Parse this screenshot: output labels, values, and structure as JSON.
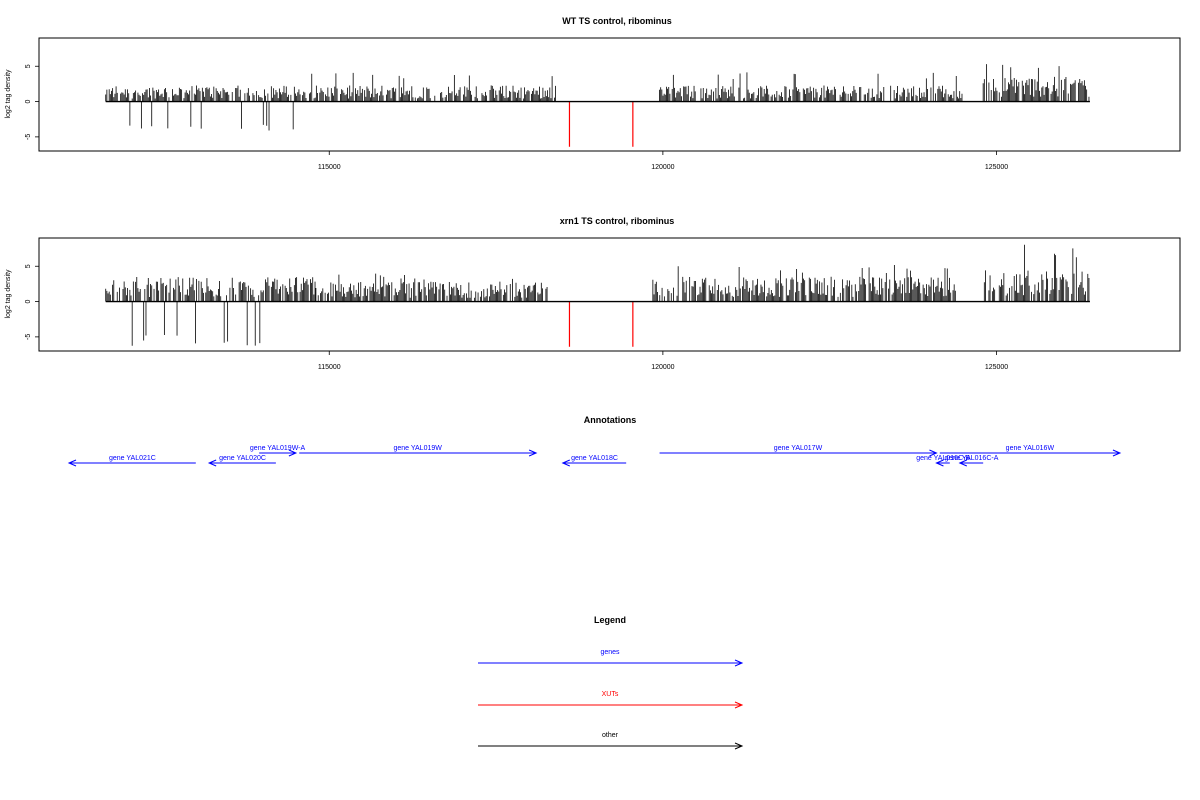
{
  "chart_data": [
    {
      "type": "bar",
      "title": "WT TS control, ribominus",
      "xlabel": "",
      "ylabel": "log2 tag density",
      "xlim": [
        110650,
        127750
      ],
      "ylim": [
        -7,
        9
      ],
      "xticks": [
        115000,
        120000,
        125000
      ],
      "yticks": [
        -5,
        0,
        5
      ],
      "x_tick_labels": [
        "115000",
        "120000",
        "125000"
      ],
      "y_tick_labels": [
        "-5",
        "0",
        "5"
      ],
      "grid": false,
      "segments": [
        {
          "from": 111650,
          "to": 114600,
          "strand": "minus",
          "mean": -1.7,
          "max": 4.2,
          "color": "#000000"
        },
        {
          "from": 114600,
          "to": 118400,
          "strand": "plus",
          "mean": 1.7,
          "max": 4.1,
          "color": "#000000"
        },
        {
          "from": 119950,
          "to": 124500,
          "strand": "plus",
          "mean": 1.7,
          "max": 4.2,
          "color": "#000000"
        },
        {
          "from": 124800,
          "to": 126400,
          "strand": "plus",
          "mean": 2.6,
          "max": 6.3,
          "color": "#000000"
        }
      ],
      "marks": [
        {
          "x": 118600,
          "y": -6.4,
          "color": "#ff0000"
        },
        {
          "x": 119550,
          "y": -6.4,
          "color": "#ff0000"
        }
      ]
    },
    {
      "type": "bar",
      "title": "xrn1 TS control, ribominus",
      "xlabel": "",
      "ylabel": "log2 tag density",
      "xlim": [
        110650,
        127750
      ],
      "ylim": [
        -7,
        9
      ],
      "xticks": [
        115000,
        120000,
        125000
      ],
      "yticks": [
        -5,
        0,
        5
      ],
      "x_tick_labels": [
        "115000",
        "120000",
        "125000"
      ],
      "y_tick_labels": [
        "-5",
        "0",
        "5"
      ],
      "grid": false,
      "segments": [
        {
          "from": 111650,
          "to": 114800,
          "strand": "minus",
          "mean": -2.6,
          "max": 6.3,
          "color": "#000000"
        },
        {
          "from": 114800,
          "to": 118300,
          "strand": "plus",
          "mean": 2.1,
          "max": 4.0,
          "color": "#000000"
        },
        {
          "from": 119850,
          "to": 124400,
          "strand": "plus",
          "mean": 2.6,
          "max": 5.3,
          "color": "#000000"
        },
        {
          "from": 124800,
          "to": 126400,
          "strand": "plus",
          "mean": 3.4,
          "max": 8.3,
          "color": "#000000"
        }
      ],
      "marks": [
        {
          "x": 118600,
          "y": -6.4,
          "color": "#ff0000"
        },
        {
          "x": 119550,
          "y": -6.4,
          "color": "#ff0000"
        }
      ]
    },
    {
      "type": "annotation",
      "title": "Annotations",
      "xlim": [
        110650,
        127750
      ],
      "features": [
        {
          "label": "gene YAL021C",
          "start": 111100,
          "end": 113000,
          "strand": "-",
          "row": 0,
          "color": "#0000ff"
        },
        {
          "label": "gene YAL020C",
          "start": 113200,
          "end": 114200,
          "strand": "-",
          "row": 0,
          "color": "#0000ff"
        },
        {
          "label": "gene YAL019W-A",
          "start": 113950,
          "end": 114500,
          "strand": "+",
          "row": 1,
          "color": "#0000ff"
        },
        {
          "label": "gene YAL019W",
          "start": 114550,
          "end": 118100,
          "strand": "+",
          "row": 1,
          "color": "#0000ff"
        },
        {
          "label": "gene YAL018C",
          "start": 118500,
          "end": 119450,
          "strand": "-",
          "row": 0,
          "color": "#0000ff"
        },
        {
          "label": "gene YAL017W",
          "start": 119950,
          "end": 124100,
          "strand": "+",
          "row": 1,
          "color": "#0000ff"
        },
        {
          "label": "gene YAL016C-B",
          "start": 124100,
          "end": 124300,
          "strand": "-",
          "row": 0,
          "color": "#0000ff"
        },
        {
          "label": "gene YAL016C-A",
          "start": 124450,
          "end": 124800,
          "strand": "-",
          "row": 0,
          "color": "#0000ff"
        },
        {
          "label": "gene YAL016W",
          "start": 124150,
          "end": 126850,
          "strand": "+",
          "row": 1,
          "color": "#0000ff"
        }
      ]
    },
    {
      "type": "legend",
      "title": "Legend",
      "entries": [
        {
          "label": "genes",
          "color": "#0000ff"
        },
        {
          "label": "XUTs",
          "color": "#ff0000"
        },
        {
          "label": "other",
          "color": "#000000"
        }
      ]
    }
  ]
}
